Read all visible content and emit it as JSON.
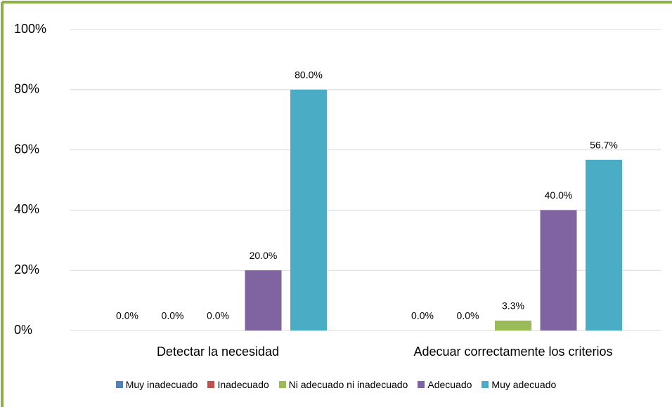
{
  "chart_data": {
    "type": "bar",
    "categories": [
      "Detectar la necesidad",
      "Adecuar correctamente los criterios"
    ],
    "series": [
      {
        "name": "Muy inadecuado",
        "color": "#4f81bd",
        "values": [
          0,
          0
        ],
        "value_labels": [
          "0.0%",
          "0.0%"
        ]
      },
      {
        "name": "Inadecuado",
        "color": "#c0504d",
        "values": [
          0,
          0
        ],
        "value_labels": [
          "0.0%",
          "0.0%"
        ]
      },
      {
        "name": "Ni adecuado ni inadecuado",
        "color": "#9bbb59",
        "values": [
          0,
          3.3
        ],
        "value_labels": [
          "0.0%",
          "3.3%"
        ]
      },
      {
        "name": "Adecuado",
        "color": "#8064a2",
        "values": [
          20,
          40
        ],
        "value_labels": [
          "20.0%",
          "40.0%"
        ]
      },
      {
        "name": "Muy adecuado",
        "color": "#4bacc6",
        "values": [
          80,
          56.7
        ],
        "value_labels": [
          "80.0%",
          "56.7%"
        ]
      }
    ],
    "ylim": [
      0,
      100
    ],
    "yticks": [
      {
        "value": 0,
        "label": "0%"
      },
      {
        "value": 20,
        "label": "20%"
      },
      {
        "value": 40,
        "label": "40%"
      },
      {
        "value": 60,
        "label": "60%"
      },
      {
        "value": 80,
        "label": "80%"
      },
      {
        "value": 100,
        "label": "100%"
      }
    ],
    "grid": true,
    "legend": "bottom"
  }
}
